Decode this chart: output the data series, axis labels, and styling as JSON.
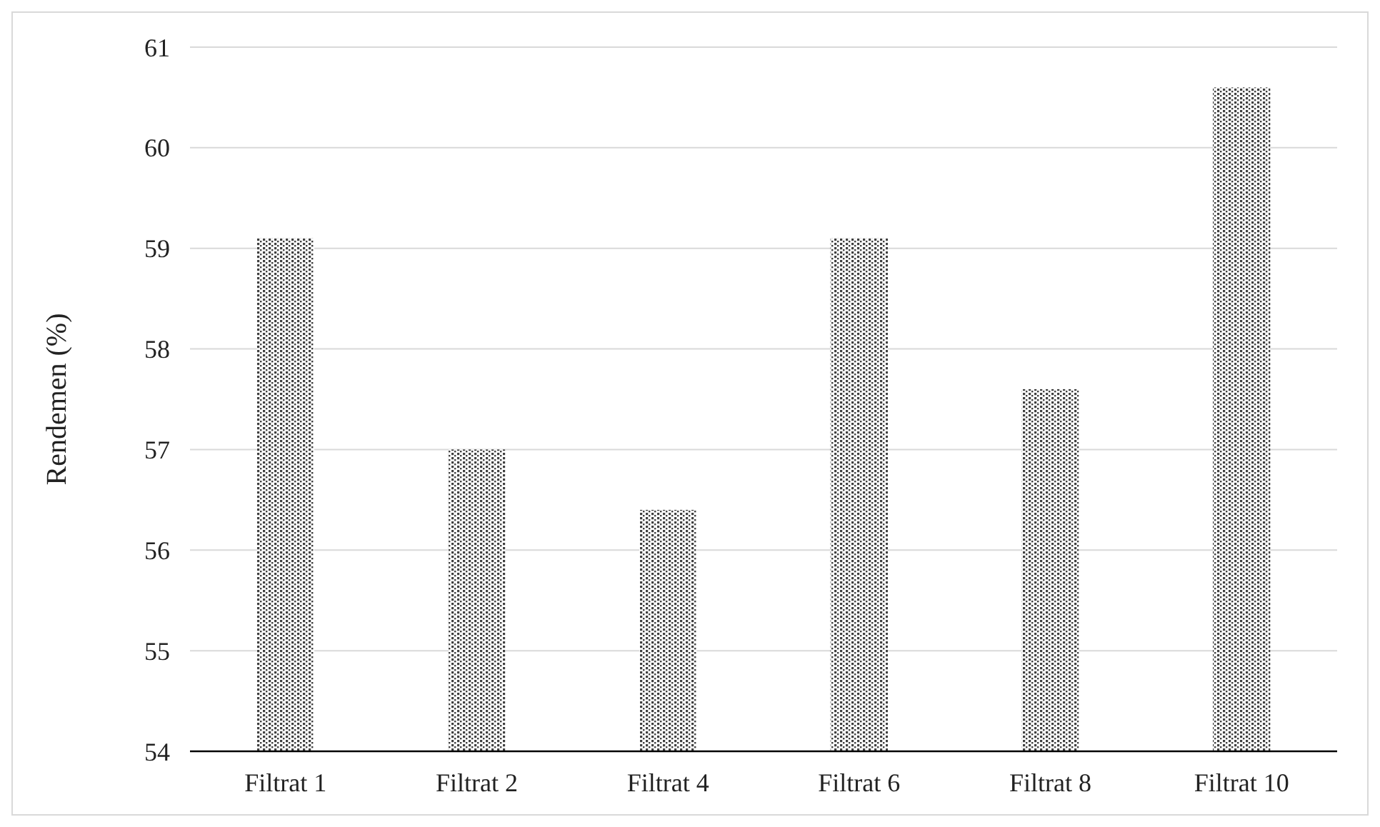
{
  "chart_data": {
    "type": "bar",
    "ylabel": "Rendemen (%)",
    "categories": [
      "Filtrat 1",
      "Filtrat 2",
      "Filtrat 4",
      "Filtrat 6",
      "Filtrat 8",
      "Filtrat 10"
    ],
    "values": [
      59.1,
      57.0,
      56.4,
      59.1,
      57.6,
      60.6
    ],
    "color": "#404040",
    "ylim": [
      54,
      61
    ],
    "yticks": [
      54,
      55,
      56,
      57,
      58,
      59,
      60,
      61
    ],
    "grid": "y"
  }
}
